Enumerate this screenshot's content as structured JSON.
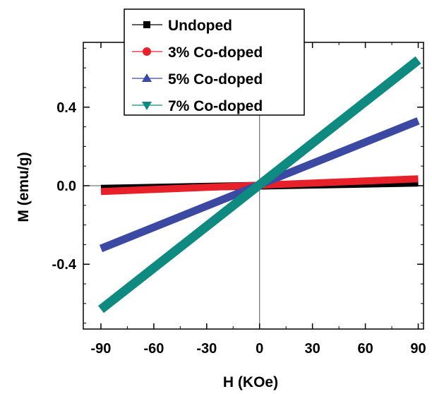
{
  "chart_data": {
    "type": "line",
    "xlabel": "H (KOe)",
    "ylabel": "M (emu/g)",
    "xlim": [
      -100,
      93
    ],
    "ylim": [
      -0.73,
      0.73
    ],
    "x_ticks": [
      -90,
      -60,
      -30,
      0,
      30,
      60,
      90
    ],
    "x_tick_labels": [
      "-90",
      "-60",
      "-30",
      "0",
      "30",
      "60",
      "90"
    ],
    "y_ticks": [
      -0.4,
      0.0,
      0.4
    ],
    "y_tick_labels": [
      "-0.4",
      "0.0",
      "0.4"
    ],
    "grid": false,
    "zero_lines": true,
    "legend_position": "top-left",
    "series": [
      {
        "name": "Undoped",
        "color": "#000000",
        "marker": "square",
        "x": [
          -90,
          90
        ],
        "y": [
          -0.015,
          0.015
        ]
      },
      {
        "name": "3% Co-doped",
        "color": "#e8202a",
        "marker": "circle",
        "x": [
          -90,
          90
        ],
        "y": [
          -0.03,
          0.035
        ]
      },
      {
        "name": "5% Co-doped",
        "color": "#3b49a3",
        "marker": "triangle-up",
        "x": [
          -90,
          90
        ],
        "y": [
          -0.32,
          0.33
        ]
      },
      {
        "name": "7% Co-doped",
        "color": "#0e8a80",
        "marker": "triangle-down",
        "x": [
          -90,
          90
        ],
        "y": [
          -0.63,
          0.64
        ]
      }
    ]
  }
}
